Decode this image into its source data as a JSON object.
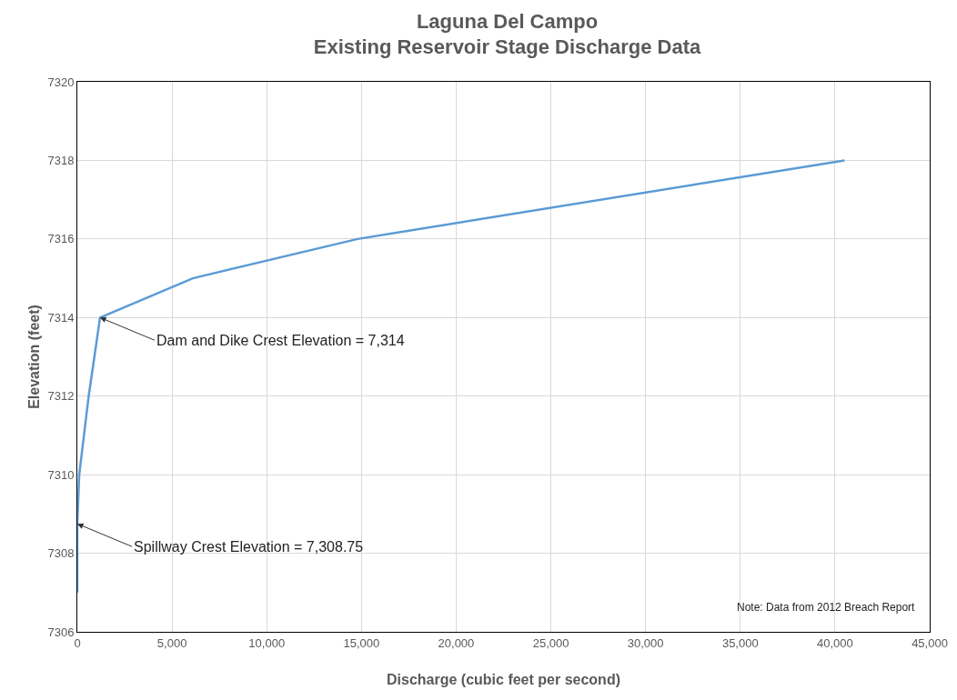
{
  "chart_data": {
    "type": "line",
    "title": "Laguna Del Campo\nExisting Reservoir Stage Discharge Data",
    "xlabel": "Discharge (cubic feet per second)",
    "ylabel": "Elevation (feet)",
    "x": [
      0,
      0,
      100,
      600,
      900,
      1200,
      6100,
      14800,
      40500
    ],
    "series": [
      {
        "color": "#5b9bd5",
        "values": [
          7307,
          7308.75,
          7310,
          7312,
          7313,
          7314,
          7315,
          7316,
          7318
        ]
      }
    ],
    "xlim": [
      0,
      45000
    ],
    "xticks": [
      {
        "value": 0,
        "label": "0"
      },
      {
        "value": 5000,
        "label": "5,000"
      },
      {
        "value": 10000,
        "label": "10,000"
      },
      {
        "value": 15000,
        "label": "15,000"
      },
      {
        "value": 20000,
        "label": "20,000"
      },
      {
        "value": 25000,
        "label": "25,000"
      },
      {
        "value": 30000,
        "label": "30,000"
      },
      {
        "value": 35000,
        "label": "35,000"
      },
      {
        "value": 40000,
        "label": "40,000"
      },
      {
        "value": 45000,
        "label": "45,000"
      }
    ],
    "ylim": [
      7306,
      7320
    ],
    "yticks": [
      7306,
      7308,
      7310,
      7312,
      7314,
      7316,
      7318,
      7320
    ],
    "grid": true,
    "marker": "none",
    "line_style": "solid",
    "annotations": [
      {
        "text": "Dam and Dike Crest Elevation = 7,314",
        "x": 1200,
        "y": 7314
      },
      {
        "text": "Spillway Crest Elevation = 7,308.75",
        "x": 0,
        "y": 7308.75
      },
      "Note: Data from 2012 Breach Report"
    ]
  }
}
